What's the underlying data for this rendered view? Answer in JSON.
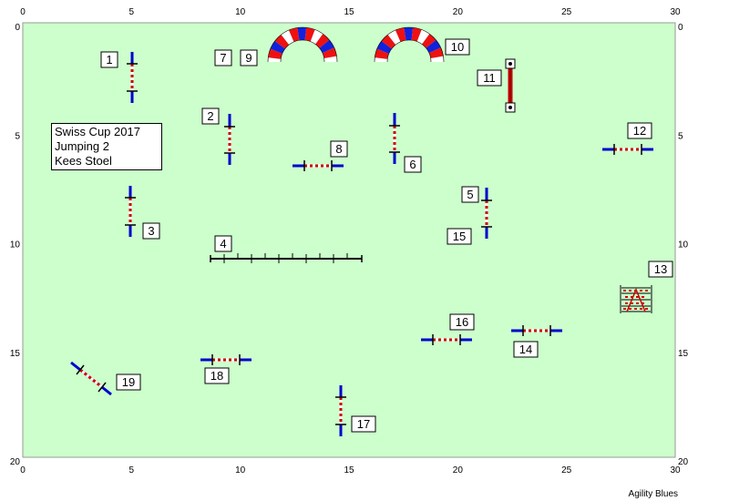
{
  "course": {
    "title": "Swiss Cup 2017",
    "class": "Jumping 2",
    "judge": "Kees Stoel"
  },
  "brand": "Agility Blues",
  "axes": {
    "x_ticks": [
      "0",
      "5",
      "10",
      "15",
      "20",
      "25",
      "30"
    ],
    "y_ticks": [
      "0",
      "5",
      "10",
      "15",
      "20"
    ]
  },
  "obstacles": [
    {
      "number": "1",
      "type": "jump"
    },
    {
      "number": "2",
      "type": "jump"
    },
    {
      "number": "3",
      "type": "jump"
    },
    {
      "number": "4",
      "type": "dog walk"
    },
    {
      "number": "5",
      "type": "jump"
    },
    {
      "number": "6",
      "type": "jump"
    },
    {
      "number": "7",
      "type": "tunnel"
    },
    {
      "number": "8",
      "type": "jump"
    },
    {
      "number": "9",
      "type": "tunnel"
    },
    {
      "number": "10",
      "type": "tunnel"
    },
    {
      "number": "11",
      "type": "tire"
    },
    {
      "number": "12",
      "type": "jump"
    },
    {
      "number": "13",
      "type": "long jump"
    },
    {
      "number": "14",
      "type": "jump"
    },
    {
      "number": "15",
      "type": "jump"
    },
    {
      "number": "16",
      "type": "jump"
    },
    {
      "number": "17",
      "type": "jump"
    },
    {
      "number": "18",
      "type": "jump"
    },
    {
      "number": "19",
      "type": "jump"
    }
  ],
  "colors": {
    "field": "#ccffcc",
    "wing": "#0000cc",
    "pole": "#cc0000",
    "tire": "#cc0000",
    "tunnel_red": "#ee1111",
    "tunnel_blue": "#1122dd"
  }
}
